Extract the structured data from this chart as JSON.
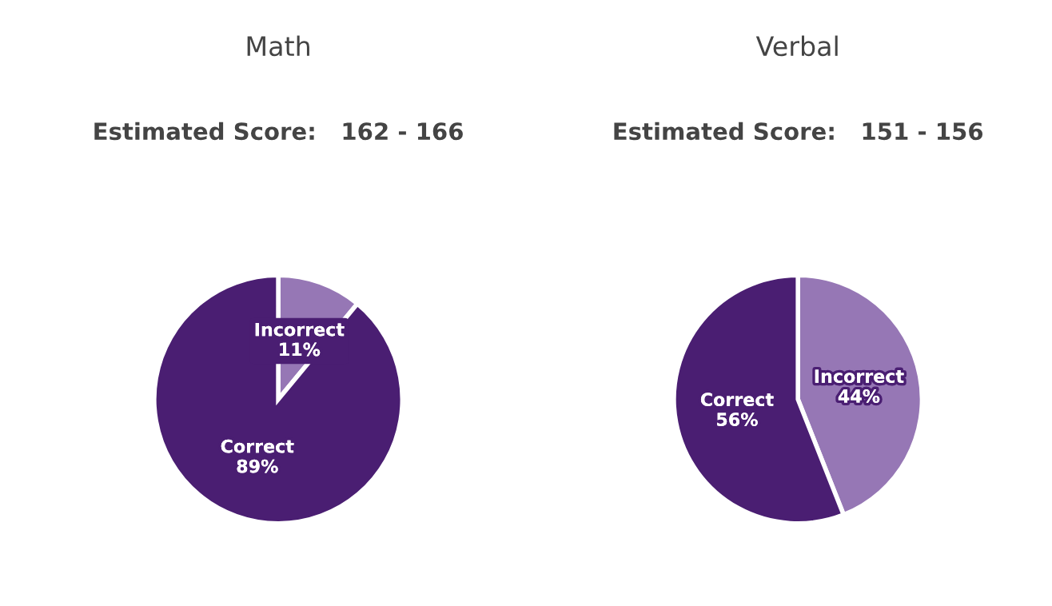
{
  "chart_data": [
    {
      "type": "pie",
      "title": "Math",
      "subtitle": "Estimated Score:   162 - 166",
      "categories": [
        "Incorrect",
        "Correct"
      ],
      "values": [
        11,
        89
      ],
      "value_labels": [
        "11%",
        "89%"
      ],
      "colors": [
        "#9677b5",
        "#4a1e72"
      ],
      "legend": false
    },
    {
      "type": "pie",
      "title": "Verbal",
      "subtitle": "Estimated Score:   151 - 156",
      "categories": [
        "Incorrect",
        "Correct"
      ],
      "values": [
        44,
        56
      ],
      "value_labels": [
        "44%",
        "56%"
      ],
      "colors": [
        "#9677b5",
        "#4a1e72"
      ],
      "legend": false
    }
  ]
}
